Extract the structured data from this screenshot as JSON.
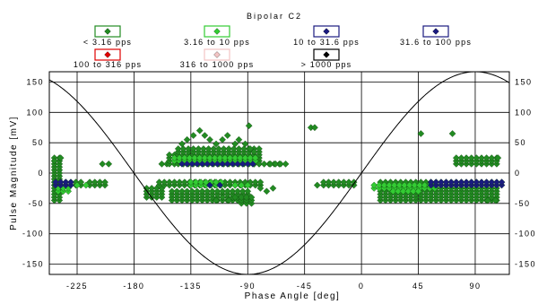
{
  "chart_data": {
    "type": "scatter",
    "title": "Bipolar C2",
    "xlabel": "Phase Angle [deg]",
    "ylabel": "Pulse Magnitude [mV]",
    "xlim": [
      -247,
      117
    ],
    "ylim": [
      -167,
      167
    ],
    "x_ticks": [
      -225,
      -180,
      -135,
      -90,
      -45,
      0,
      45,
      90
    ],
    "x_tick_labels": [
      "-225",
      "-180",
      "-135",
      "-90",
      "-45",
      "0",
      "45",
      "90"
    ],
    "y_ticks": [
      -150,
      -100,
      -50,
      0,
      50,
      100,
      150
    ],
    "y_tick_labels_left": [
      "-150",
      "-100",
      "-50",
      "0",
      "50",
      "100",
      "150"
    ],
    "y_tick_labels_right": [
      "-150",
      "-100",
      "-50",
      "0",
      "50",
      "100",
      "150"
    ],
    "grid": true,
    "reference_curve": {
      "type": "sine",
      "amplitude": 167,
      "period_deg": 360,
      "phase_deg": 0
    },
    "legend": [
      {
        "label": "< 3.16 pps",
        "color": "#228B22"
      },
      {
        "label": "3.16 to 10 pps",
        "color": "#33CC33"
      },
      {
        "label": "10 to 31.6 pps",
        "color": "#1A1A80"
      },
      {
        "label": "31.6 to 100 pps",
        "color": "#1A1A80"
      },
      {
        "label": "100 to 316 pps",
        "color": "#E00000"
      },
      {
        "label": "316 to 1000 pps",
        "color": "#F2C4C4"
      },
      {
        "label": "> 1000 pps",
        "color": "#000000"
      }
    ],
    "series": [
      {
        "color": "#228B22",
        "rects": [
          {
            "x": [
              -243,
              -238
            ],
            "y": [
              -45,
              25
            ]
          },
          {
            "x": [
              -238,
              -222
            ],
            "y": [
              -20,
              -15
            ]
          },
          {
            "x": [
              -215,
              -200
            ],
            "y": [
              -20,
              -15
            ]
          },
          {
            "x": [
              -170,
              -155
            ],
            "y": [
              -40,
              -25
            ]
          },
          {
            "x": [
              -160,
              -80
            ],
            "y": [
              -20,
              -15
            ]
          },
          {
            "x": [
              -150,
              -90
            ],
            "y": [
              -45,
              -30
            ]
          },
          {
            "x": [
              -158,
              -152
            ],
            "y": [
              15,
              15
            ]
          },
          {
            "x": [
              -152,
              -145
            ],
            "y": [
              15,
              30
            ]
          },
          {
            "x": [
              -145,
              -80
            ],
            "y": [
              15,
              40
            ]
          },
          {
            "x": [
              -95,
              -85
            ],
            "y": [
              -50,
              -40
            ]
          },
          {
            "x": [
              -85,
              -65
            ],
            "y": [
              15,
              15
            ]
          },
          {
            "x": [
              -30,
              -5
            ],
            "y": [
              -20,
              -15
            ]
          },
          {
            "x": [
              15,
              110
            ],
            "y": [
              -45,
              -15
            ]
          },
          {
            "x": [
              75,
              110
            ],
            "y": [
              15,
              25
            ]
          }
        ],
        "points": [
          [
            -243,
            20
          ],
          [
            -238,
            25
          ],
          [
            -200,
            15
          ],
          [
            -205,
            15
          ],
          [
            -142,
            48
          ],
          [
            -138,
            55
          ],
          [
            -133,
            62
          ],
          [
            -128,
            70
          ],
          [
            -124,
            62
          ],
          [
            -120,
            55
          ],
          [
            -115,
            48
          ],
          [
            -110,
            55
          ],
          [
            -106,
            62
          ],
          [
            -100,
            48
          ],
          [
            -97,
            55
          ],
          [
            -92,
            48
          ],
          [
            -89,
            78
          ],
          [
            -88,
            40
          ],
          [
            -85,
            35
          ],
          [
            -72,
            15
          ],
          [
            -68,
            15
          ],
          [
            -64,
            15
          ],
          [
            -60,
            15
          ],
          [
            -40,
            75
          ],
          [
            -37,
            75
          ],
          [
            -35,
            -20
          ],
          [
            47,
            65
          ],
          [
            72,
            65
          ],
          [
            -115,
            -45
          ],
          [
            -110,
            -40
          ],
          [
            -105,
            -45
          ],
          [
            -100,
            -40
          ],
          [
            -75,
            -30
          ],
          [
            -80,
            -25
          ],
          [
            -70,
            -25
          ],
          [
            100,
            -45
          ],
          [
            106,
            -45
          ],
          [
            108,
            25
          ]
        ]
      },
      {
        "color": "#33CC33",
        "rects": [
          {
            "x": [
              -240,
              -230
            ],
            "y": [
              -30,
              -25
            ]
          },
          {
            "x": [
              -148,
              -82
            ],
            "y": [
              20,
              25
            ]
          },
          {
            "x": [
              -135,
              -110
            ],
            "y": [
              -20,
              -15
            ]
          },
          {
            "x": [
              10,
              60
            ],
            "y": [
              -25,
              -20
            ]
          },
          {
            "x": [
              25,
              45
            ],
            "y": [
              -30,
              -30
            ]
          }
        ],
        "points": [
          [
            -225,
            -20
          ],
          [
            -218,
            -20
          ],
          [
            -100,
            -20
          ],
          [
            -95,
            -20
          ],
          [
            -90,
            -20
          ]
        ]
      },
      {
        "color": "#1A1A80",
        "rects": [
          {
            "x": [
              -242,
              -230
            ],
            "y": [
              -20,
              -15
            ]
          },
          {
            "x": [
              -142,
              -85
            ],
            "y": [
              15,
              15
            ]
          },
          {
            "x": [
              55,
              112
            ],
            "y": [
              -20,
              -15
            ]
          }
        ],
        "points": [
          [
            -120,
            -20
          ],
          [
            -112,
            -20
          ]
        ]
      }
    ]
  }
}
